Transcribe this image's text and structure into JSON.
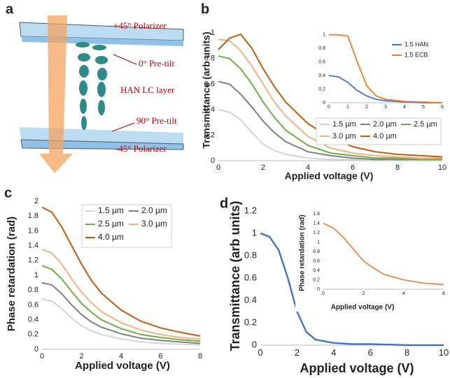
{
  "diagram": {
    "panel": "a",
    "labels": [
      "+45° Polarizer",
      "0° Pre-tilt",
      "HAN LC layer",
      "90° Pre-tilt",
      "-45° Polarizer"
    ]
  },
  "chart_data": [
    {
      "type": "line",
      "panel": "b",
      "xlabel": "Applied voltage (V)",
      "ylabel": "Transmittance (arb units)",
      "x": [
        0,
        0.5,
        1,
        1.5,
        2,
        2.5,
        3,
        4,
        5,
        6,
        7,
        8,
        9,
        10
      ],
      "xlim": [
        0,
        10
      ],
      "xticks": [
        0,
        2,
        4,
        6,
        8,
        10
      ],
      "ylim": [
        0,
        1.1
      ],
      "yticks": [
        0,
        0.2,
        0.4,
        0.6,
        0.8,
        1
      ],
      "grid": false,
      "series": [
        {
          "name": "1.5 µm",
          "color": "#d4d4d4",
          "values": [
            0.4,
            0.38,
            0.32,
            0.22,
            0.13,
            0.08,
            0.05,
            0.02,
            0.01,
            0.01,
            0.01,
            0,
            0,
            0
          ]
        },
        {
          "name": "2.0 µm",
          "color": "#808080",
          "values": [
            0.62,
            0.6,
            0.52,
            0.42,
            0.31,
            0.22,
            0.15,
            0.07,
            0.04,
            0.02,
            0.01,
            0.01,
            0.01,
            0.01
          ]
        },
        {
          "name": "2.5 µm",
          "color": "#70ad47",
          "values": [
            0.82,
            0.8,
            0.72,
            0.6,
            0.46,
            0.34,
            0.24,
            0.12,
            0.06,
            0.04,
            0.02,
            0.02,
            0.01,
            0.01
          ]
        },
        {
          "name": "3.0 µm",
          "color": "#f4b183",
          "values": [
            0.95,
            0.94,
            0.86,
            0.74,
            0.6,
            0.46,
            0.35,
            0.19,
            0.1,
            0.06,
            0.04,
            0.03,
            0.02,
            0.02
          ]
        },
        {
          "name": "4.0 µm",
          "color": "#c55a11",
          "values": [
            0.87,
            0.96,
            0.99,
            0.88,
            0.72,
            0.58,
            0.46,
            0.29,
            0.18,
            0.11,
            0.07,
            0.05,
            0.04,
            0.03
          ]
        }
      ],
      "inset": {
        "type": "line",
        "x": [
          0,
          0.5,
          1,
          1.5,
          2,
          2.5,
          3,
          4,
          5,
          6
        ],
        "xlim": [
          0,
          6
        ],
        "xticks": [
          0,
          1,
          2,
          3,
          4,
          5,
          6
        ],
        "ylim": [
          0,
          1.1
        ],
        "yticks": [
          0,
          0.2,
          0.4,
          0.6,
          0.8,
          1
        ],
        "grid": false,
        "series": [
          {
            "name": "1.5 HAN",
            "color": "#4472c4",
            "values": [
              0.4,
              0.38,
              0.3,
              0.18,
              0.1,
              0.05,
              0.03,
              0.01,
              0,
              0
            ]
          },
          {
            "name": "1.5 ECB",
            "color": "#ed7d31",
            "values": [
              1.0,
              1.0,
              0.98,
              0.6,
              0.25,
              0.1,
              0.05,
              0.02,
              0.01,
              0
            ]
          }
        ]
      }
    },
    {
      "type": "line",
      "panel": "c",
      "xlabel": "Applied voltage (V)",
      "ylabel": "Phase retardation (rad)",
      "x": [
        0,
        0.5,
        1,
        1.5,
        2,
        2.5,
        3,
        4,
        5,
        6,
        7,
        8
      ],
      "xlim": [
        0,
        8
      ],
      "xticks": [
        0,
        2,
        4,
        6,
        8
      ],
      "ylim": [
        0,
        2
      ],
      "yticks": [
        0,
        0.2,
        0.4,
        0.6,
        0.8,
        1,
        1.2,
        1.4,
        1.6,
        1.8,
        2
      ],
      "grid": false,
      "series": [
        {
          "name": "1.5 µm",
          "color": "#d4d4d4",
          "values": [
            0.68,
            0.65,
            0.55,
            0.42,
            0.32,
            0.25,
            0.2,
            0.14,
            0.1,
            0.08,
            0.07,
            0.06
          ]
        },
        {
          "name": "2.0 µm",
          "color": "#808080",
          "values": [
            0.9,
            0.87,
            0.75,
            0.6,
            0.47,
            0.37,
            0.3,
            0.21,
            0.15,
            0.12,
            0.1,
            0.08
          ]
        },
        {
          "name": "2.5 µm",
          "color": "#70ad47",
          "values": [
            1.13,
            1.08,
            0.95,
            0.78,
            0.62,
            0.5,
            0.4,
            0.28,
            0.2,
            0.16,
            0.13,
            0.11
          ]
        },
        {
          "name": "3.0 µm",
          "color": "#f4b183",
          "values": [
            1.35,
            1.3,
            1.15,
            0.95,
            0.77,
            0.63,
            0.51,
            0.36,
            0.26,
            0.2,
            0.16,
            0.14
          ]
        },
        {
          "name": "4.0 µm",
          "color": "#c55a11",
          "values": [
            1.92,
            1.85,
            1.65,
            1.4,
            1.15,
            0.93,
            0.76,
            0.53,
            0.38,
            0.29,
            0.23,
            0.18
          ]
        }
      ]
    },
    {
      "type": "line",
      "panel": "d",
      "xlabel": "Applied voltage (V)",
      "ylabel": "Transmittance (arb units)",
      "x": [
        0,
        0.5,
        1,
        1.5,
        2,
        2.5,
        3,
        4,
        5,
        6,
        8,
        10
      ],
      "xlim": [
        0,
        10
      ],
      "xticks": [
        0,
        2,
        4,
        6,
        8,
        10
      ],
      "ylim": [
        0,
        1.3
      ],
      "yticks": [
        0,
        0.2,
        0.4,
        0.6,
        0.8,
        1,
        1.2
      ],
      "grid": false,
      "color": "#4472c4",
      "values": [
        1.0,
        0.97,
        0.85,
        0.6,
        0.3,
        0.12,
        0.05,
        0.02,
        0.01,
        0.01,
        0,
        0
      ],
      "inset": {
        "type": "line",
        "xlabel": "Applied voltage (V)",
        "ylabel": "Phase retardation (rad)",
        "x": [
          0,
          0.5,
          1,
          1.5,
          2,
          2.5,
          3,
          4,
          5,
          6
        ],
        "xlim": [
          0,
          6
        ],
        "xticks": [
          0,
          2,
          4,
          6
        ],
        "ylim": [
          0,
          1.6
        ],
        "yticks": [
          0,
          0.2,
          0.4,
          0.6,
          0.8,
          1,
          1.2,
          1.4,
          1.6
        ],
        "grid": false,
        "color": "#ed7d31",
        "values": [
          1.4,
          1.3,
          1.1,
          0.85,
          0.6,
          0.45,
          0.32,
          0.2,
          0.13,
          0.1
        ]
      }
    }
  ]
}
